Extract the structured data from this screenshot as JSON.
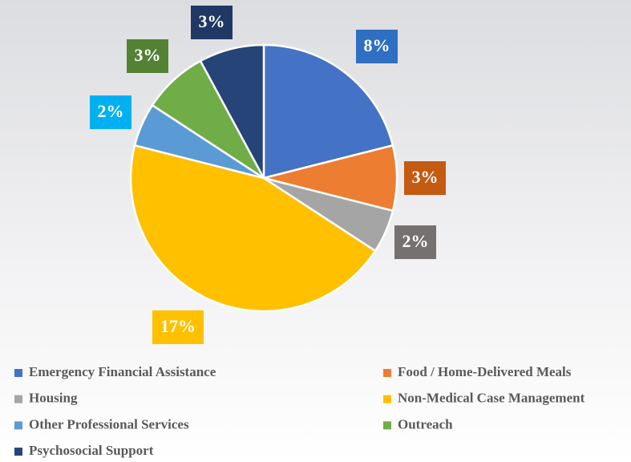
{
  "chart_data": {
    "type": "pie",
    "categories": [
      "Emergency Financial Assistance",
      "Food / Home-Delivered Meals",
      "Housing",
      "Non-Medical Case Management",
      "Other Professional Services",
      "Outreach",
      "Psychosocial Support"
    ],
    "values": [
      8,
      3,
      2,
      17,
      2,
      3,
      3
    ],
    "value_labels": [
      "8%",
      "3%",
      "2%",
      "17%",
      "2%",
      "3%",
      "3%"
    ],
    "colors": [
      "#4472c4",
      "#ed7d31",
      "#a5a5a5",
      "#ffc000",
      "#5b9bd5",
      "#70ad47",
      "#264478"
    ],
    "label_colors": [
      "#2f6fc2",
      "#c55a11",
      "#767171",
      "#ffc000",
      "#00b0f0",
      "#548235",
      "#203864"
    ],
    "legend": "bottom"
  }
}
